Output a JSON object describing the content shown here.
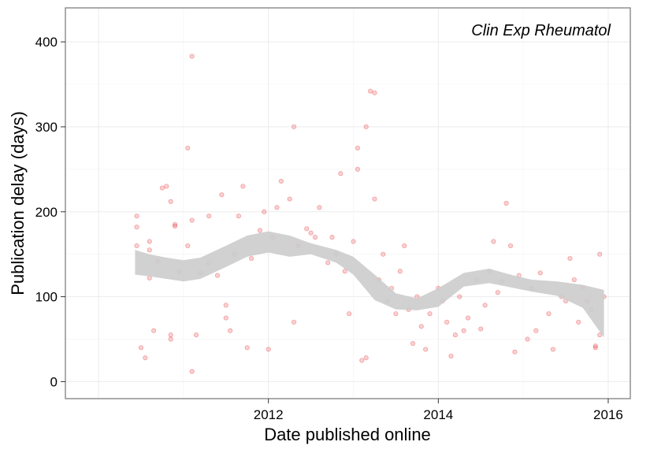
{
  "chart_data": {
    "type": "scatter",
    "title": "",
    "annotation": "Clin Exp Rheumatol",
    "xlabel": "Date published online",
    "ylabel": "Publication delay (days)",
    "x_ticks": [
      {
        "value": 2012,
        "label": "2012"
      },
      {
        "value": 2014,
        "label": "2014"
      },
      {
        "value": 2016,
        "label": "2016"
      }
    ],
    "y_ticks": [
      {
        "value": 0,
        "label": "0"
      },
      {
        "value": 100,
        "label": "100"
      },
      {
        "value": 200,
        "label": "200"
      },
      {
        "value": 300,
        "label": "300"
      },
      {
        "value": 400,
        "label": "400"
      }
    ],
    "xlim": [
      2009.61,
      2016.26
    ],
    "ylim": [
      -20,
      440
    ],
    "grid": true,
    "point_color": "#e31a1c",
    "band_color": "#cccccc",
    "x_dates_approx": [
      2010.43,
      2010.6,
      2010.8,
      2011.0,
      2011.2,
      2011.5,
      2011.75,
      2012.0,
      2012.25,
      2012.5,
      2012.8,
      2013.0,
      2013.25,
      2013.5,
      2013.75,
      2014.0,
      2014.3,
      2014.6,
      2014.85,
      2015.1,
      2015.4,
      2015.7,
      2015.95
    ],
    "trend_upper": [
      155,
      150,
      146,
      143,
      146,
      160,
      172,
      177,
      172,
      163,
      155,
      147,
      126,
      104,
      98,
      110,
      128,
      133,
      126,
      120,
      118,
      114,
      108
    ],
    "trend_lower": [
      126,
      124,
      121,
      118,
      121,
      135,
      147,
      152,
      147,
      150,
      140,
      126,
      96,
      85,
      84,
      88,
      112,
      116,
      111,
      106,
      101,
      87,
      52
    ],
    "series": [
      {
        "values": [
          [
            2010.45,
            160
          ],
          [
            2010.45,
            182
          ],
          [
            2010.45,
            195
          ],
          [
            2010.5,
            40
          ],
          [
            2010.55,
            28
          ],
          [
            2010.6,
            165
          ],
          [
            2010.6,
            155
          ],
          [
            2010.6,
            122
          ],
          [
            2010.65,
            60
          ],
          [
            2010.7,
            142
          ],
          [
            2010.75,
            228
          ],
          [
            2010.8,
            230
          ],
          [
            2010.85,
            212
          ],
          [
            2010.85,
            50
          ],
          [
            2010.85,
            55
          ],
          [
            2010.9,
            185
          ],
          [
            2010.9,
            183
          ],
          [
            2010.95,
            130
          ],
          [
            2011.05,
            160
          ],
          [
            2011.05,
            275
          ],
          [
            2011.1,
            383
          ],
          [
            2011.1,
            190
          ],
          [
            2011.1,
            12
          ],
          [
            2011.15,
            55
          ],
          [
            2011.2,
            128
          ],
          [
            2011.3,
            140
          ],
          [
            2011.3,
            195
          ],
          [
            2011.4,
            125
          ],
          [
            2011.45,
            220
          ],
          [
            2011.5,
            90
          ],
          [
            2011.5,
            75
          ],
          [
            2011.55,
            60
          ],
          [
            2011.6,
            150
          ],
          [
            2011.65,
            195
          ],
          [
            2011.7,
            230
          ],
          [
            2011.75,
            40
          ],
          [
            2011.8,
            145
          ],
          [
            2011.9,
            178
          ],
          [
            2011.95,
            200
          ],
          [
            2012.0,
            38
          ],
          [
            2012.05,
            170
          ],
          [
            2012.1,
            205
          ],
          [
            2012.15,
            236
          ],
          [
            2012.25,
            215
          ],
          [
            2012.3,
            300
          ],
          [
            2012.3,
            70
          ],
          [
            2012.35,
            160
          ],
          [
            2012.45,
            180
          ],
          [
            2012.5,
            175
          ],
          [
            2012.55,
            170
          ],
          [
            2012.6,
            205
          ],
          [
            2012.7,
            140
          ],
          [
            2012.75,
            170
          ],
          [
            2012.8,
            150
          ],
          [
            2012.85,
            245
          ],
          [
            2012.9,
            130
          ],
          [
            2012.95,
            80
          ],
          [
            2013.0,
            165
          ],
          [
            2013.05,
            275
          ],
          [
            2013.05,
            250
          ],
          [
            2013.1,
            25
          ],
          [
            2013.15,
            28
          ],
          [
            2013.15,
            300
          ],
          [
            2013.2,
            342
          ],
          [
            2013.25,
            340
          ],
          [
            2013.25,
            215
          ],
          [
            2013.3,
            120
          ],
          [
            2013.35,
            150
          ],
          [
            2013.4,
            95
          ],
          [
            2013.45,
            110
          ],
          [
            2013.5,
            80
          ],
          [
            2013.55,
            130
          ],
          [
            2013.6,
            160
          ],
          [
            2013.65,
            85
          ],
          [
            2013.7,
            45
          ],
          [
            2013.75,
            100
          ],
          [
            2013.8,
            65
          ],
          [
            2013.85,
            38
          ],
          [
            2013.9,
            80
          ],
          [
            2014.0,
            110
          ],
          [
            2014.05,
            95
          ],
          [
            2014.1,
            70
          ],
          [
            2014.15,
            30
          ],
          [
            2014.2,
            55
          ],
          [
            2014.25,
            100
          ],
          [
            2014.3,
            60
          ],
          [
            2014.35,
            75
          ],
          [
            2014.45,
            120
          ],
          [
            2014.5,
            62
          ],
          [
            2014.55,
            90
          ],
          [
            2014.6,
            130
          ],
          [
            2014.65,
            165
          ],
          [
            2014.7,
            105
          ],
          [
            2014.75,
            118
          ],
          [
            2014.8,
            210
          ],
          [
            2014.85,
            160
          ],
          [
            2014.9,
            35
          ],
          [
            2014.95,
            125
          ],
          [
            2015.05,
            50
          ],
          [
            2015.1,
            110
          ],
          [
            2015.15,
            60
          ],
          [
            2015.2,
            128
          ],
          [
            2015.3,
            80
          ],
          [
            2015.35,
            38
          ],
          [
            2015.45,
            100
          ],
          [
            2015.5,
            95
          ],
          [
            2015.55,
            145
          ],
          [
            2015.6,
            120
          ],
          [
            2015.65,
            70
          ],
          [
            2015.7,
            110
          ],
          [
            2015.75,
            95
          ],
          [
            2015.8,
            85
          ],
          [
            2015.85,
            42
          ],
          [
            2015.85,
            40
          ],
          [
            2015.9,
            150
          ],
          [
            2015.9,
            55
          ],
          [
            2015.95,
            100
          ]
        ]
      }
    ]
  }
}
